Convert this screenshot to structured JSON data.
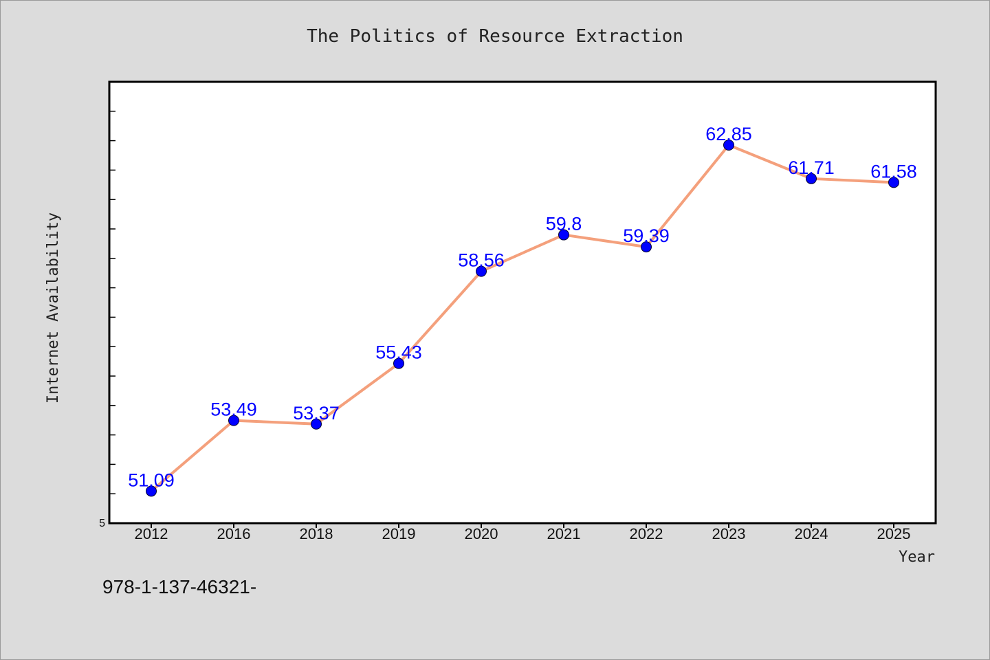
{
  "chart_data": {
    "type": "line",
    "title": "The Politics of Resource Extraction",
    "xlabel": "Year",
    "ylabel": "Internet Availability",
    "categories": [
      "2012",
      "2016",
      "2018",
      "2019",
      "2020",
      "2021",
      "2022",
      "2023",
      "2024",
      "2025"
    ],
    "series": [
      {
        "values": [
          51.09,
          53.49,
          53.37,
          55.43,
          58.56,
          59.8,
          59.39,
          62.85,
          61.71,
          61.58
        ],
        "labels": [
          "51.09",
          "53.49",
          "53.37",
          "55.43",
          "58.56",
          "59.8",
          "59.39",
          "62.85",
          "61.71",
          "61.58"
        ],
        "line_color": "#f4a07c",
        "marker_color": "#0000ff"
      }
    ],
    "ylim": [
      50,
      65
    ],
    "y_tick_labels": [
      "5"
    ],
    "grid": false,
    "legend": "none"
  },
  "footnote": "978-1-137-46321-"
}
